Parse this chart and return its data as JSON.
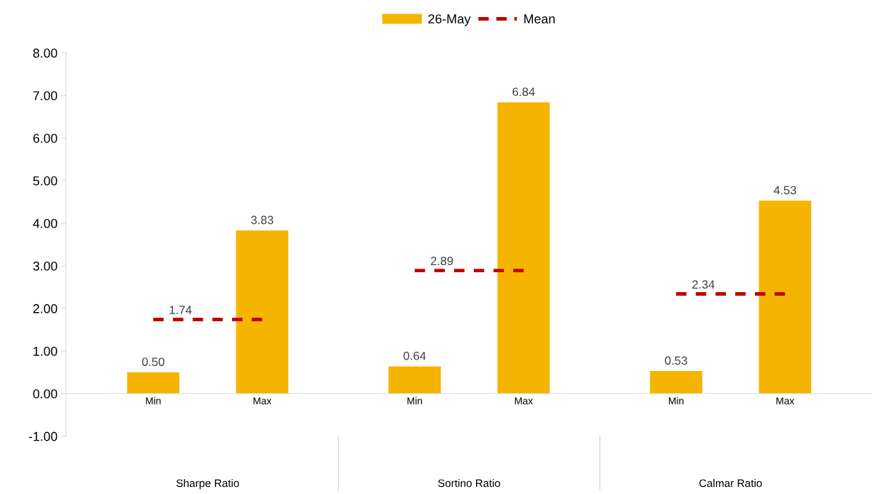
{
  "chart_data": {
    "type": "bar",
    "categories": [
      "Min",
      "Max",
      "Min",
      "Max",
      "Min",
      "Max"
    ],
    "series": [
      {
        "name": "26-May",
        "color": "#f5b400",
        "values": [
          0.5,
          3.83,
          0.64,
          6.84,
          0.53,
          4.53
        ],
        "value_labels": [
          "0.50",
          "3.83",
          "0.64",
          "6.84",
          "0.53",
          "4.53"
        ]
      },
      {
        "name": "Mean",
        "type": "line",
        "color": "#c00000",
        "line_style": "dashed",
        "values": [
          1.74,
          1.74,
          2.89,
          2.89,
          2.34,
          2.34
        ],
        "value_labels": [
          "1.74",
          null,
          "2.89",
          null,
          "2.34",
          null
        ]
      }
    ],
    "annotations": [
      "Sharpe Ratio",
      "Sortino Ratio",
      "Calmar Ratio"
    ],
    "ylim": [
      -1,
      8
    ],
    "yticks": [
      {
        "value": -1,
        "label": "-1.00"
      },
      {
        "value": 0,
        "label": "0.00"
      },
      {
        "value": 1,
        "label": "1.00"
      },
      {
        "value": 2,
        "label": "2.00"
      },
      {
        "value": 3,
        "label": "3.00"
      },
      {
        "value": 4,
        "label": "4.00"
      },
      {
        "value": 5,
        "label": "5.00"
      },
      {
        "value": 6,
        "label": "6.00"
      },
      {
        "value": 7,
        "label": "7.00"
      },
      {
        "value": 8,
        "label": "8.00"
      }
    ],
    "grid": false,
    "legend": "top"
  }
}
